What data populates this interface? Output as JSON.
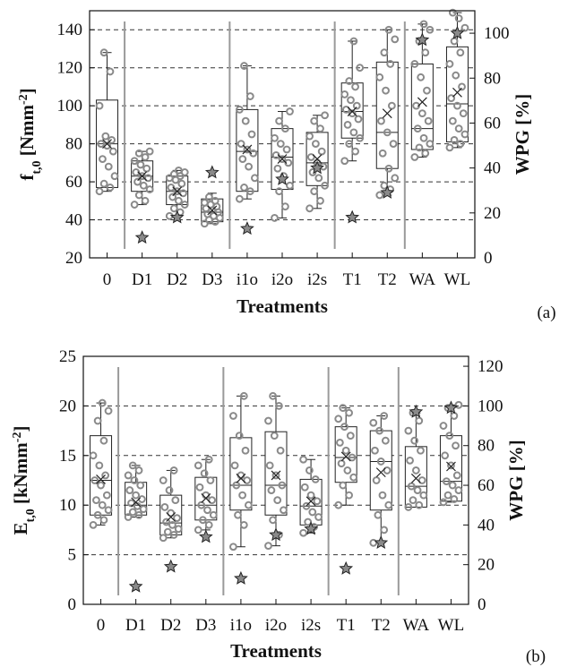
{
  "chart_data": [
    {
      "type": "box",
      "panel_label": "(a)",
      "categories": [
        "0",
        "D1",
        "D2",
        "D3",
        "i1o",
        "i2o",
        "i2s",
        "T1",
        "T2",
        "WA",
        "WL"
      ],
      "xlabel": "Treatments",
      "ylabel": "f",
      "ylabel_sub": "t,0",
      "ylabel_unit": " [Nmm",
      "ylabel_sup": "-2",
      "ylabel_close": "]",
      "ylabel_right": "WPG [%]",
      "ylim": [
        20,
        150
      ],
      "yticks": [
        "20",
        "40",
        "60",
        "80",
        "100",
        "120",
        "140"
      ],
      "ylim_right": [
        0,
        110
      ],
      "yticks_right": [
        "0",
        "20",
        "40",
        "60",
        "80",
        "100"
      ],
      "grid": "dashed horizontal at 40, 60, 80, 100, 120, 140",
      "group_separators_after": [
        "0",
        "D3",
        "i2s",
        "T2"
      ],
      "boxes": [
        {
          "q1": 57,
          "median": 80,
          "q3": 103,
          "mean": 80,
          "whisker_low": 55,
          "whisker_high": 128,
          "wpg": null,
          "points": [
            55,
            57,
            59,
            63,
            68,
            72,
            76,
            79,
            80,
            82,
            84,
            100,
            118,
            128
          ]
        },
        {
          "q1": 55,
          "median": 63,
          "q3": 71,
          "mean": 63,
          "whisker_low": 48,
          "whisker_high": 76,
          "wpg": 9,
          "points": [
            48,
            50,
            53,
            56,
            58,
            60,
            62,
            63,
            65,
            67,
            69,
            71,
            73,
            75,
            76
          ]
        },
        {
          "q1": 48,
          "median": 55,
          "q3": 63,
          "mean": 55,
          "whisker_low": 42,
          "whisker_high": 66,
          "wpg": 18,
          "points": [
            42,
            44,
            46,
            48,
            50,
            52,
            54,
            55,
            57,
            59,
            61,
            62,
            63,
            64,
            65,
            66
          ]
        },
        {
          "q1": 39,
          "median": 44,
          "q3": 51,
          "mean": 45,
          "whisker_low": 38,
          "whisker_high": 54,
          "wpg": 38,
          "points": [
            38,
            39,
            40,
            41,
            42,
            43,
            44,
            45,
            46,
            47,
            48,
            49,
            50,
            52
          ]
        },
        {
          "q1": 55,
          "median": 76,
          "q3": 98,
          "mean": 77,
          "whisker_low": 51,
          "whisker_high": 121,
          "wpg": 13,
          "points": [
            51,
            55,
            57,
            62,
            68,
            72,
            75,
            77,
            80,
            85,
            92,
            98,
            105,
            121
          ]
        },
        {
          "q1": 56,
          "median": 73,
          "q3": 88,
          "mean": 72,
          "whisker_low": 41,
          "whisker_high": 97,
          "wpg": 35,
          "points": [
            41,
            47,
            55,
            58,
            63,
            67,
            70,
            72,
            74,
            77,
            80,
            83,
            88,
            92,
            97
          ]
        },
        {
          "q1": 58,
          "median": 70,
          "q3": 86,
          "mean": 72,
          "whisker_low": 46,
          "whisker_high": 95,
          "wpg": 40,
          "points": [
            46,
            50,
            55,
            58,
            62,
            65,
            68,
            70,
            73,
            76,
            80,
            84,
            88,
            92,
            95
          ]
        },
        {
          "q1": 83,
          "median": 97,
          "q3": 112,
          "mean": 97,
          "whisker_low": 71,
          "whisker_high": 134,
          "wpg": 18,
          "points": [
            71,
            76,
            80,
            83,
            86,
            90,
            93,
            96,
            98,
            100,
            103,
            106,
            110,
            113,
            120,
            134
          ]
        },
        {
          "q1": 67,
          "median": 86,
          "q3": 123,
          "mean": 96,
          "whisker_low": 53,
          "whisker_high": 140,
          "wpg": 29,
          "points": [
            53,
            56,
            58,
            62,
            67,
            75,
            80,
            86,
            92,
            100,
            108,
            115,
            122,
            128,
            135,
            140
          ]
        },
        {
          "q1": 77,
          "median": 88,
          "q3": 122,
          "mean": 102,
          "whisker_low": 73,
          "whisker_high": 143,
          "wpg": 97,
          "points": [
            73,
            75,
            78,
            80,
            83,
            88,
            92,
            96,
            100,
            108,
            115,
            122,
            128,
            134,
            140,
            143
          ]
        },
        {
          "q1": 81,
          "median": 101,
          "q3": 131,
          "mean": 107,
          "whisker_low": 78,
          "whisker_high": 149,
          "wpg": 100,
          "points": [
            78,
            80,
            82,
            85,
            88,
            92,
            96,
            100,
            104,
            110,
            116,
            122,
            128,
            134,
            141,
            146,
            149
          ]
        }
      ]
    },
    {
      "type": "box",
      "panel_label": "(b)",
      "categories": [
        "0",
        "D1",
        "D2",
        "D3",
        "i1o",
        "i2o",
        "i2s",
        "T1",
        "T2",
        "WA",
        "WL"
      ],
      "xlabel": "Treatments",
      "ylabel": "E",
      "ylabel_sub": "t,0",
      "ylabel_unit": " [kNmm",
      "ylabel_sup": "-2",
      "ylabel_close": "]",
      "ylabel_right": "WPG [%]",
      "ylim": [
        0,
        25
      ],
      "yticks": [
        "0",
        "5",
        "10",
        "15",
        "20",
        "25"
      ],
      "ylim_right": [
        0,
        125
      ],
      "yticks_right": [
        "0",
        "20",
        "40",
        "60",
        "80",
        "100",
        "120"
      ],
      "grid": "dashed horizontal at 5, 10, 15, 20",
      "group_separators_after": [
        "0",
        "D3",
        "i2s",
        "T2"
      ],
      "boxes": [
        {
          "q1": 9.0,
          "median": 12.5,
          "q3": 17.0,
          "mean": 12.6,
          "whisker_low": 8.0,
          "whisker_high": 20.3,
          "wpg": null,
          "points": [
            8.0,
            8.5,
            9.0,
            9.5,
            10.0,
            10.5,
            11.0,
            12.0,
            12.5,
            13.0,
            14.0,
            15.0,
            16.5,
            18.5,
            19.5,
            20.3
          ]
        },
        {
          "q1": 9.0,
          "median": 10.0,
          "q3": 12.3,
          "mean": 10.3,
          "whisker_low": 8.8,
          "whisker_high": 14.0,
          "wpg": 9,
          "points": [
            8.8,
            9.0,
            9.3,
            9.6,
            9.9,
            10.2,
            10.6,
            11.0,
            11.5,
            12.0,
            12.5,
            13.0,
            13.5,
            14.0
          ]
        },
        {
          "q1": 7.0,
          "median": 8.2,
          "q3": 11.0,
          "mean": 8.8,
          "whisker_low": 6.7,
          "whisker_high": 13.5,
          "wpg": 19,
          "points": [
            6.7,
            7.0,
            7.3,
            7.6,
            8.0,
            8.3,
            8.7,
            9.2,
            9.8,
            10.5,
            11.5,
            12.5,
            13.5
          ]
        },
        {
          "q1": 8.5,
          "median": 10.0,
          "q3": 12.8,
          "mean": 10.7,
          "whisker_low": 7.5,
          "whisker_high": 14.6,
          "wpg": 34,
          "points": [
            7.5,
            8.0,
            8.5,
            9.0,
            9.5,
            10.0,
            10.5,
            11.0,
            11.8,
            12.5,
            13.2,
            14.0,
            14.6
          ]
        },
        {
          "q1": 9.5,
          "median": 12.0,
          "q3": 16.8,
          "mean": 12.7,
          "whisker_low": 5.8,
          "whisker_high": 21.0,
          "wpg": 13,
          "points": [
            5.8,
            8.0,
            9.0,
            10.0,
            11.0,
            12.0,
            12.5,
            13.0,
            14.0,
            15.5,
            17.0,
            19.0,
            21.0
          ]
        },
        {
          "q1": 9.0,
          "median": 12.0,
          "q3": 17.4,
          "mean": 13.0,
          "whisker_low": 5.9,
          "whisker_high": 21.0,
          "wpg": 35,
          "points": [
            5.9,
            7.0,
            8.5,
            9.5,
            10.5,
            11.5,
            12.0,
            13.0,
            14.0,
            15.5,
            17.0,
            18.5,
            20.0,
            21.0
          ]
        },
        {
          "q1": 8.0,
          "median": 9.9,
          "q3": 12.6,
          "mean": 10.4,
          "whisker_low": 7.2,
          "whisker_high": 14.6,
          "wpg": 38,
          "points": [
            7.2,
            7.8,
            8.3,
            8.8,
            9.3,
            9.9,
            10.4,
            11.0,
            11.8,
            12.6,
            13.5,
            14.6
          ]
        },
        {
          "q1": 12.3,
          "median": 14.8,
          "q3": 17.9,
          "mean": 14.9,
          "whisker_low": 10.0,
          "whisker_high": 19.8,
          "wpg": 18,
          "points": [
            10.0,
            11.0,
            12.0,
            12.8,
            13.5,
            14.2,
            14.8,
            15.5,
            16.3,
            17.0,
            17.9,
            18.7,
            19.3,
            19.8
          ]
        },
        {
          "q1": 9.5,
          "median": 14.4,
          "q3": 17.5,
          "mean": 13.3,
          "whisker_low": 6.2,
          "whisker_high": 19.0,
          "wpg": 31,
          "points": [
            6.2,
            7.5,
            9.0,
            10.0,
            11.0,
            12.5,
            13.5,
            14.4,
            15.5,
            16.5,
            17.5,
            18.3,
            19.0
          ]
        },
        {
          "q1": 9.8,
          "median": 11.9,
          "q3": 15.9,
          "mean": 12.7,
          "whisker_low": 9.8,
          "whisker_high": 19.3,
          "wpg": 97,
          "points": [
            9.8,
            10.0,
            10.5,
            11.0,
            11.5,
            11.9,
            12.5,
            13.5,
            14.5,
            15.5,
            16.5,
            17.5,
            18.5,
            19.3
          ]
        },
        {
          "q1": 10.4,
          "median": 12.4,
          "q3": 17.0,
          "mean": 13.9,
          "whisker_low": 10.3,
          "whisker_high": 20.1,
          "wpg": 99,
          "points": [
            10.3,
            10.6,
            11.0,
            11.5,
            12.0,
            12.4,
            13.0,
            14.0,
            15.0,
            16.0,
            17.0,
            18.0,
            19.0,
            19.8,
            20.1
          ]
        }
      ]
    }
  ]
}
